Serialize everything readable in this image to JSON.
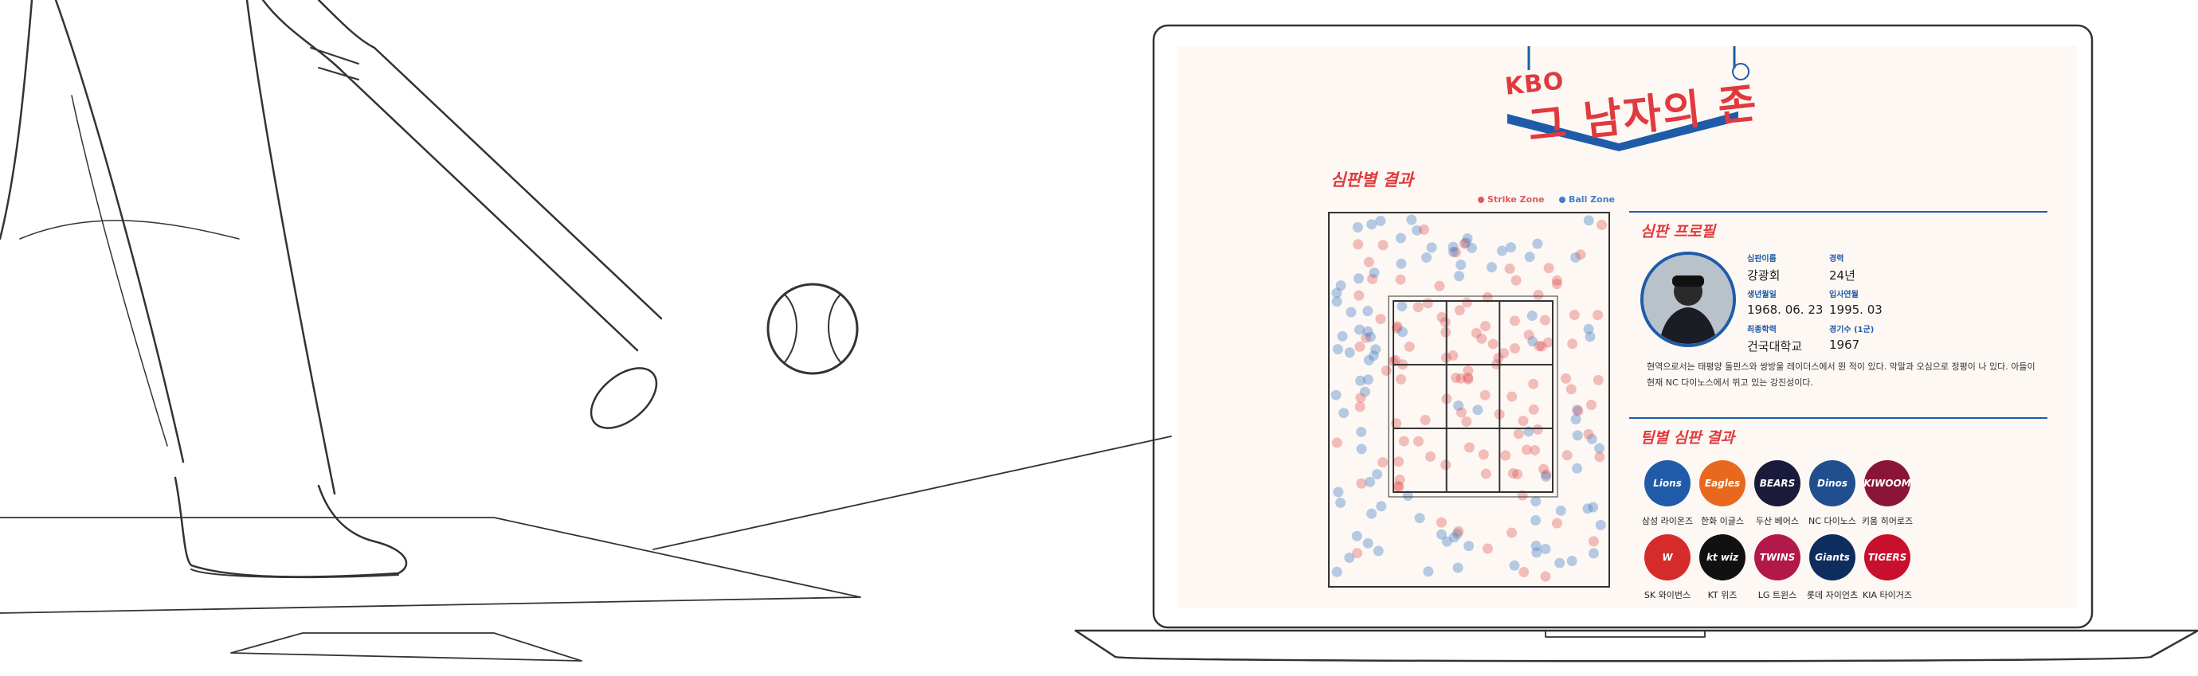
{
  "header": {
    "kbo": "KBO",
    "title": "그 남자의 존"
  },
  "chart_section": {
    "title": "심판별 결과",
    "legend": [
      {
        "label": "Strike Zone",
        "color": "#e05a5a"
      },
      {
        "label": "Ball Zone",
        "color": "#3f7fc4"
      }
    ]
  },
  "profile": {
    "title": "심판 프로필",
    "fields": [
      {
        "label": "심판이름",
        "value": "강광회"
      },
      {
        "label": "경력",
        "value": "24년"
      },
      {
        "label": "생년월일",
        "value": "1968. 06. 23"
      },
      {
        "label": "입사연월",
        "value": "1995. 03"
      },
      {
        "label": "최종학력",
        "value": "건국대학교"
      },
      {
        "label": "경기수 (1군)",
        "value": "1967"
      }
    ],
    "bio": "현역으로서는 태평양 돌핀스와 쌍방울 레이더스에서 뛴 적이 있다. 막말과 오심으로 정평이 나 있다. 아들이 현재 NC 다이노스에서 뛰고 있는 강진성이다."
  },
  "teams_section": {
    "title": "팀별 심판 결과",
    "teams": [
      {
        "name": "삼성 라이온즈",
        "logo_text": "Lions",
        "color": "#1f5ba8"
      },
      {
        "name": "한화 이글스",
        "logo_text": "Eagles",
        "color": "#e8691e"
      },
      {
        "name": "두산 베어스",
        "logo_text": "BEARS",
        "color": "#1a1a3a"
      },
      {
        "name": "NC 다이노스",
        "logo_text": "Dinos",
        "color": "#1f4f8f"
      },
      {
        "name": "키움 히어로즈",
        "logo_text": "KIWOOM",
        "color": "#8a1538"
      },
      {
        "name": "SK 와이번스",
        "logo_text": "W",
        "color": "#d62b2b"
      },
      {
        "name": "KT 위즈",
        "logo_text": "kt wiz",
        "color": "#111111"
      },
      {
        "name": "LG 트윈스",
        "logo_text": "TWINS",
        "color": "#b2184a"
      },
      {
        "name": "롯데 자이언츠",
        "logo_text": "Giants",
        "color": "#0f2c5e"
      },
      {
        "name": "KIA 타이거즈",
        "logo_text": "TIGERS",
        "color": "#c8102e"
      }
    ]
  }
}
